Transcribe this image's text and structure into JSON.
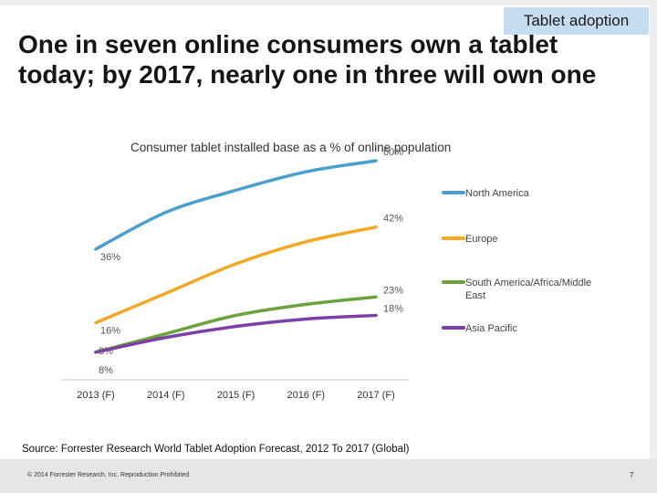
{
  "header": {
    "section_tag": "Tablet adoption",
    "title": "One in seven online consumers own a tablet today; by 2017, nearly one in three will own one"
  },
  "chart_data": {
    "type": "line",
    "title": "Consumer tablet installed base as a % of online population",
    "categories": [
      "2013 (F)",
      "2014 (F)",
      "2015 (F)",
      "2016 (F)",
      "2017 (F)"
    ],
    "series": [
      {
        "name": "North America",
        "color": "#4a9fd0",
        "values": [
          36,
          46,
          52,
          57,
          60
        ],
        "labels": [
          "36%",
          "",
          "",
          "",
          "60%"
        ]
      },
      {
        "name": "Europe",
        "color": "#f5a623",
        "values": [
          16,
          24,
          32,
          38,
          42
        ],
        "labels": [
          "16%",
          "",
          "",
          "",
          "42%"
        ]
      },
      {
        "name": "South America/Africa/Middle East",
        "color": "#6aa23c",
        "values": [
          8,
          13,
          18,
          21,
          23
        ],
        "labels": [
          "8%",
          "",
          "",
          "",
          "23%"
        ]
      },
      {
        "name": "Asia Pacific",
        "color": "#7b3fa6",
        "values": [
          8,
          12,
          15,
          17,
          18
        ],
        "labels": [
          "8%",
          "",
          "",
          "",
          "18%"
        ]
      }
    ],
    "ylim": [
      0,
      64
    ],
    "grid": false,
    "legend": "right"
  },
  "footer": {
    "source": "Source: Forrester Research World Tablet Adoption Forecast, 2012 To 2017 (Global)",
    "copyright": "© 2014 Forrester Research, Inc. Reproduction Prohibited",
    "page_number": "7"
  }
}
